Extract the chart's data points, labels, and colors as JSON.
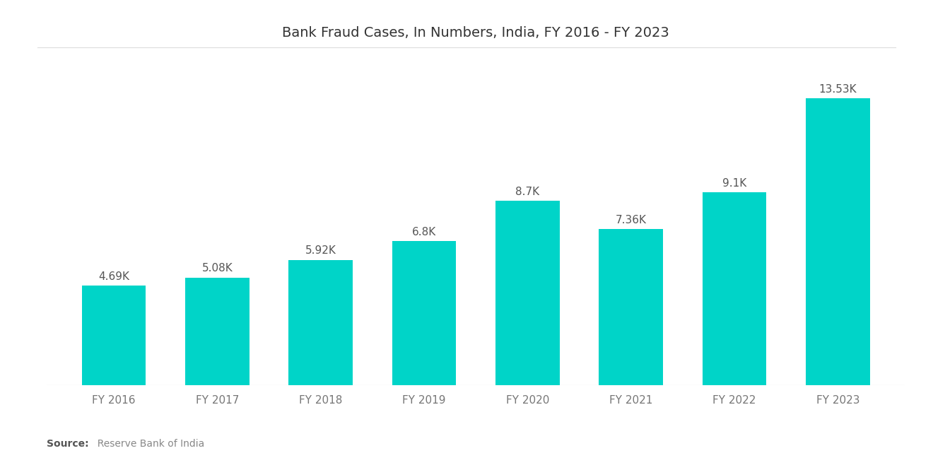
{
  "title": "Bank Fraud Cases, In Numbers, India, FY 2016 - FY 2023",
  "categories": [
    "FY 2016",
    "FY 2017",
    "FY 2018",
    "FY 2019",
    "FY 2020",
    "FY 2021",
    "FY 2022",
    "FY 2023"
  ],
  "values": [
    4690,
    5080,
    5920,
    6800,
    8700,
    7360,
    9100,
    13530
  ],
  "labels": [
    "4.69K",
    "5.08K",
    "5.92K",
    "6.8K",
    "8.7K",
    "7.36K",
    "9.1K",
    "13.53K"
  ],
  "bar_color": "#00D4C8",
  "background_color": "#FFFFFF",
  "source_bold": "Source:",
  "source_normal": "  Reserve Bank of India",
  "title_fontsize": 14,
  "label_fontsize": 11,
  "xlabel_fontsize": 11,
  "source_fontsize": 10,
  "ylim": [
    0,
    15500
  ],
  "bar_width": 0.62
}
